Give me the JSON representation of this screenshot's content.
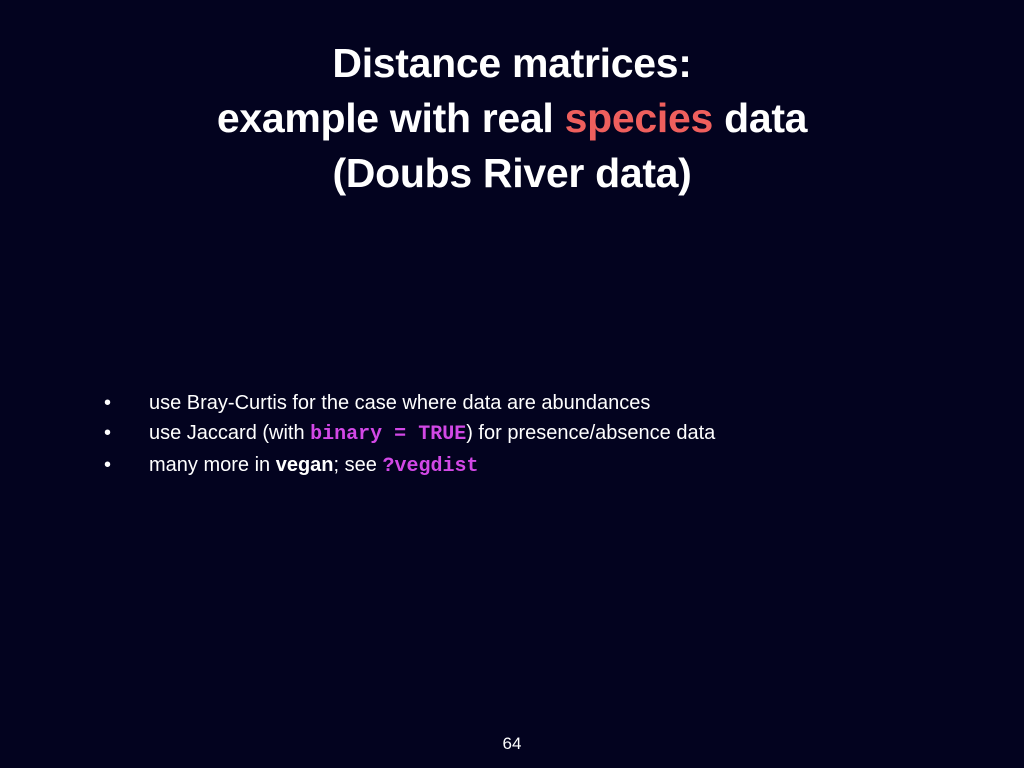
{
  "slide": {
    "title": {
      "line1": "Distance matrices:",
      "line2_pre": "example with real ",
      "line2_accent": "species",
      "line2_post": " data",
      "line3": "(Doubs River data)"
    },
    "bullets": [
      {
        "marker": "•",
        "text": "use Bray-Curtis for the case where data are abundances"
      },
      {
        "marker": "•",
        "pre": "use Jaccard (with ",
        "code": "binary = TRUE",
        "post": ") for presence/absence data"
      },
      {
        "marker": "•",
        "pre": "many more in ",
        "bold": "vegan",
        "mid": "; see ",
        "code": "?vegdist"
      }
    ],
    "page_number": "64"
  },
  "colors": {
    "background": "#03031f",
    "text": "#ffffff",
    "accent": "#ef5f5d",
    "code": "#d248e6"
  }
}
